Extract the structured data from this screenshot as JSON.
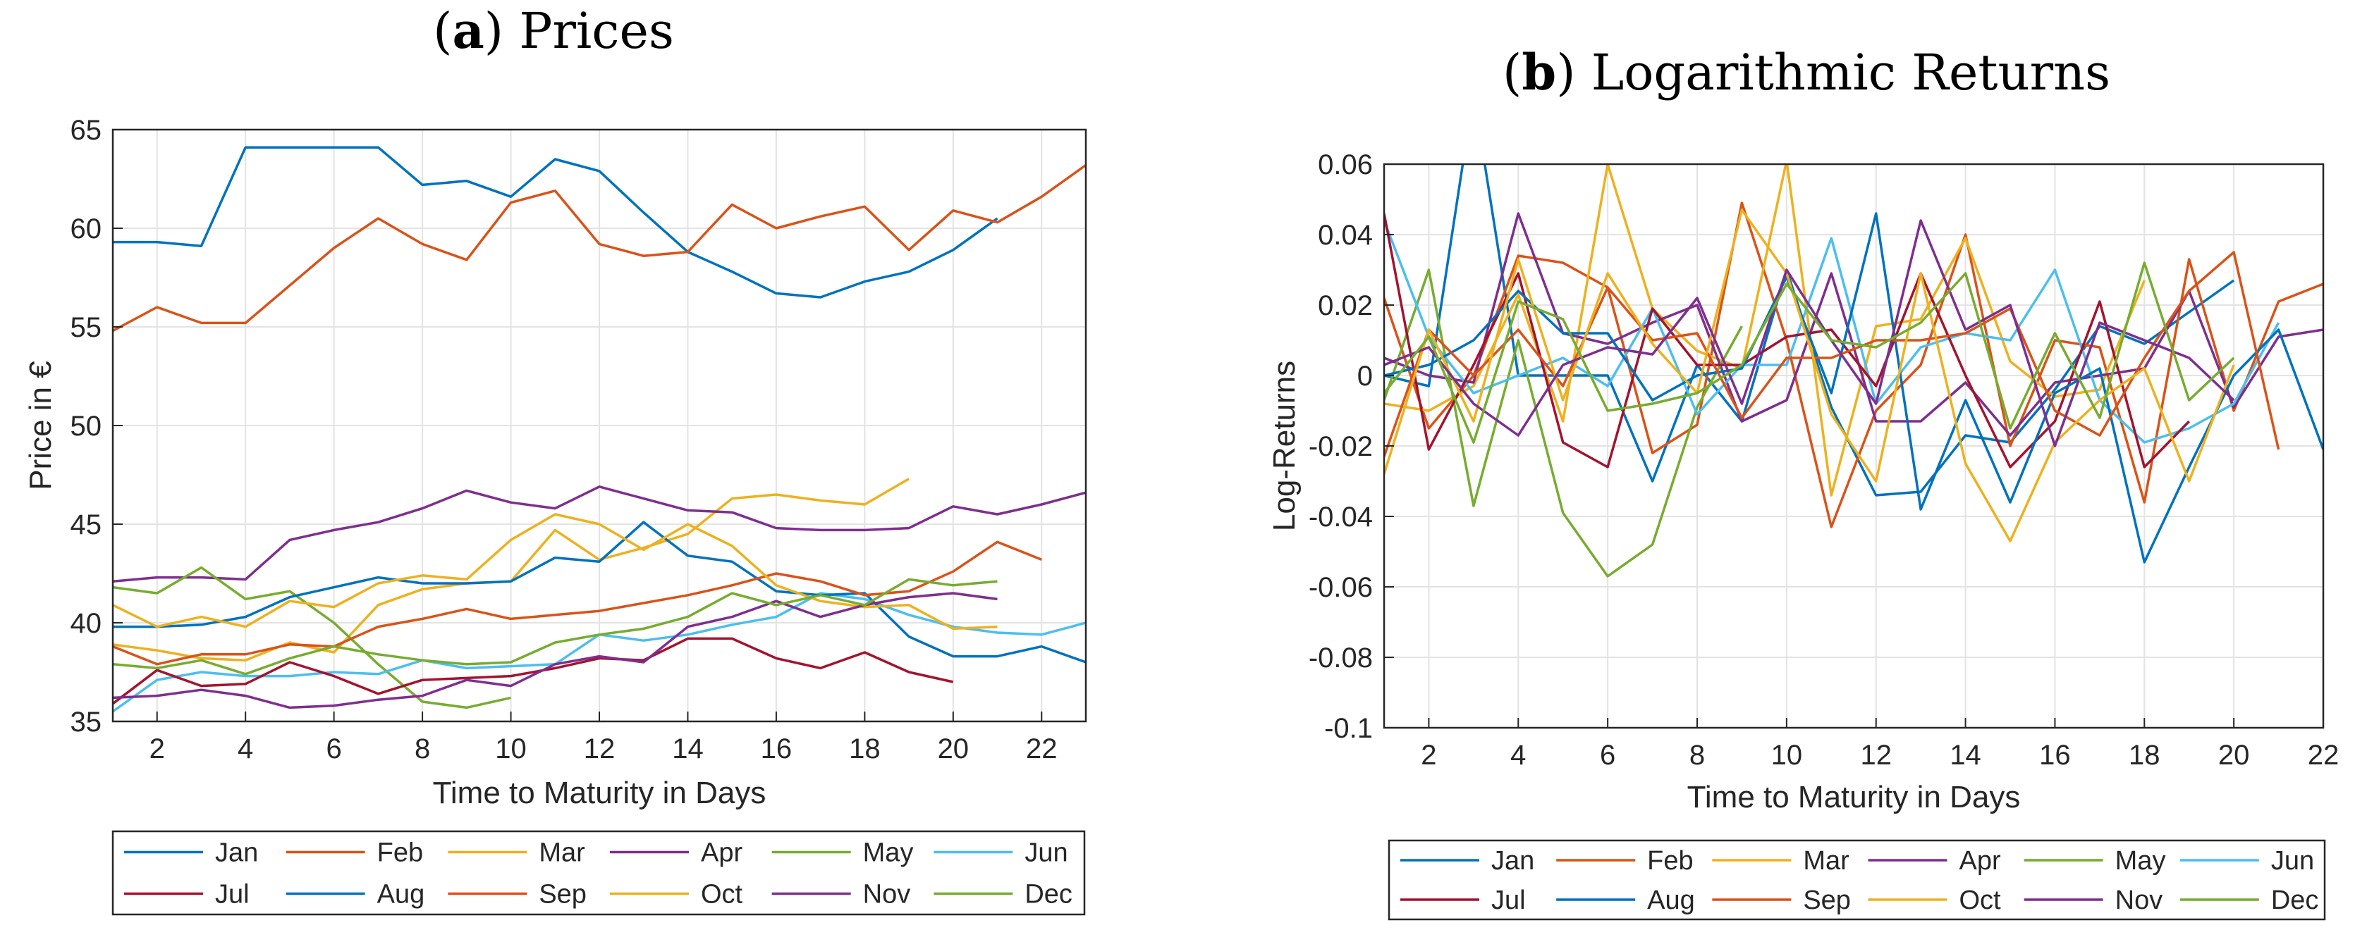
{
  "figure": {
    "legend_labels": [
      "Jan",
      "Feb",
      "Mar",
      "Apr",
      "May",
      "Jun",
      "Jul",
      "Aug",
      "Sep",
      "Oct",
      "Nov",
      "Dec"
    ],
    "series_colors": [
      "#0072BD",
      "#D95319",
      "#EDB120",
      "#7E2F8E",
      "#77AC30",
      "#4DBEEE",
      "#A2142F",
      "#0072BD",
      "#D95319",
      "#EDB120",
      "#7E2F8E",
      "#77AC30"
    ]
  },
  "chart_data": [
    {
      "type": "line",
      "panel_letter": "a",
      "title": "Prices",
      "xlabel": "Time to Maturity in Days",
      "ylabel": "Price in €",
      "xlim": [
        1,
        23
      ],
      "ylim": [
        35,
        65
      ],
      "xticks": [
        2,
        4,
        6,
        8,
        10,
        12,
        14,
        16,
        18,
        20,
        22
      ],
      "yticks": [
        35,
        40,
        45,
        50,
        55,
        60,
        65
      ],
      "ytick_labels": [
        "35",
        "40",
        "45",
        "50",
        "55",
        "60",
        "65"
      ],
      "grid": true,
      "legend_position": "bottom",
      "series": [
        {
          "name": "Jan",
          "x_start": 1,
          "values": [
            59.3,
            59.3,
            59.1,
            64.1,
            64.1,
            64.1,
            64.1,
            62.2,
            62.4,
            61.6,
            63.5,
            62.9,
            60.8,
            58.8,
            57.8,
            56.7,
            56.5,
            57.3,
            57.8,
            58.9,
            60.5
          ]
        },
        {
          "name": "Feb",
          "x_start": 1,
          "values": [
            54.8,
            56.0,
            55.2,
            55.2,
            57.1,
            59.0,
            60.5,
            59.2,
            58.4,
            61.3,
            61.9,
            59.2,
            58.6,
            58.8,
            61.2,
            60.0,
            60.6,
            61.1,
            58.9,
            60.9,
            60.3,
            61.6,
            63.2
          ]
        },
        {
          "name": "Mar",
          "x_start": 1,
          "values": [
            38.9,
            38.6,
            38.2,
            38.1,
            39.0,
            38.5,
            40.9,
            41.7,
            42.0,
            42.1,
            44.7,
            43.2,
            43.8,
            44.5,
            46.3,
            46.5,
            46.2,
            46.0,
            47.3
          ]
        },
        {
          "name": "Apr",
          "x_start": 1,
          "values": [
            42.1,
            42.3,
            42.3,
            42.2,
            44.2,
            44.7,
            45.1,
            45.8,
            46.7,
            46.1,
            45.8,
            46.9,
            46.3,
            45.7,
            45.6,
            44.8,
            44.7,
            44.7,
            44.8,
            45.9,
            45.5,
            46.0,
            46.6
          ]
        },
        {
          "name": "May",
          "x_start": 1,
          "values": [
            41.8,
            41.5,
            42.8,
            41.2,
            41.6,
            40.0,
            37.9,
            36.0,
            35.7,
            36.2
          ]
        },
        {
          "name": "Jun",
          "x_start": 1,
          "values": [
            35.5,
            37.1,
            37.5,
            37.3,
            37.3,
            37.5,
            37.4,
            38.1,
            37.7,
            37.8,
            37.9,
            39.4,
            39.1,
            39.4,
            39.9,
            40.3,
            41.5,
            41.2,
            40.4,
            39.8,
            39.5,
            39.4,
            40.0
          ]
        },
        {
          "name": "Jul",
          "x_start": 1,
          "values": [
            35.9,
            37.6,
            36.8,
            36.9,
            38.0,
            37.3,
            36.4,
            37.1,
            37.2,
            37.3,
            37.7,
            38.2,
            38.1,
            39.2,
            39.2,
            38.2,
            37.7,
            38.5,
            37.5,
            37.0
          ]
        },
        {
          "name": "Aug",
          "x_start": 1,
          "values": [
            39.8,
            39.8,
            39.9,
            40.3,
            41.3,
            41.8,
            42.3,
            42.0,
            42.0,
            42.1,
            43.3,
            43.1,
            45.1,
            43.4,
            43.1,
            41.6,
            41.4,
            41.5,
            39.3,
            38.3,
            38.3,
            38.8,
            38.0
          ]
        },
        {
          "name": "Sep",
          "x_start": 1,
          "values": [
            38.8,
            37.9,
            38.4,
            38.4,
            38.9,
            38.8,
            39.8,
            40.2,
            40.7,
            40.2,
            40.4,
            40.6,
            41.0,
            41.4,
            41.9,
            42.5,
            42.1,
            41.4,
            41.6,
            42.6,
            44.1,
            43.2
          ]
        },
        {
          "name": "Oct",
          "x_start": 1,
          "values": [
            40.9,
            39.8,
            40.3,
            39.8,
            41.1,
            40.8,
            42.0,
            42.4,
            42.2,
            44.2,
            45.5,
            45.0,
            43.7,
            45.0,
            43.9,
            41.9,
            41.1,
            40.8,
            40.9,
            39.7,
            39.8
          ]
        },
        {
          "name": "Nov",
          "x_start": 1,
          "values": [
            36.2,
            36.3,
            36.6,
            36.3,
            35.7,
            35.8,
            36.1,
            36.3,
            37.1,
            36.8,
            37.9,
            38.3,
            38.0,
            39.8,
            40.3,
            41.1,
            40.3,
            40.9,
            41.3,
            41.5,
            41.2
          ]
        },
        {
          "name": "Dec",
          "x_start": 1,
          "values": [
            37.9,
            37.7,
            38.1,
            37.4,
            38.2,
            38.8,
            38.4,
            38.1,
            37.9,
            38.0,
            39.0,
            39.4,
            39.7,
            40.3,
            41.5,
            40.9,
            41.4,
            40.9,
            42.2,
            41.9,
            42.1
          ]
        }
      ]
    },
    {
      "type": "line",
      "panel_letter": "b",
      "title": "Logarithmic Returns",
      "xlabel": "Time to Maturity in Days",
      "ylabel": "Log-Returns",
      "xlim": [
        1,
        22
      ],
      "ylim": [
        -0.1,
        0.06
      ],
      "xticks": [
        2,
        4,
        6,
        8,
        10,
        12,
        14,
        16,
        18,
        20,
        22
      ],
      "yticks": [
        -0.1,
        -0.08,
        -0.06,
        -0.04,
        -0.02,
        0,
        0.02,
        0.04,
        0.06
      ],
      "ytick_labels": [
        "-0.1",
        "-0.08",
        "-0.06",
        "-0.04",
        "-0.02",
        "0",
        "0.02",
        "0.04",
        "0.06"
      ],
      "grid": true,
      "legend_position": "bottom",
      "series": [
        {
          "name": "Jan",
          "x_start": 1,
          "values": [
            0.0,
            -0.003,
            0.08,
            0.0,
            0.0,
            0.0,
            -0.03,
            0.003,
            -0.013,
            0.03,
            -0.009,
            -0.034,
            -0.033,
            -0.017,
            -0.019,
            -0.004,
            0.014,
            0.009,
            0.018,
            0.027
          ]
        },
        {
          "name": "Feb",
          "x_start": 1,
          "values": [
            0.022,
            -0.015,
            0.0,
            0.034,
            0.032,
            0.025,
            -0.022,
            -0.014,
            0.049,
            0.01,
            -0.043,
            -0.01,
            0.003,
            0.04,
            -0.02,
            0.01,
            0.008,
            -0.036,
            0.033,
            -0.01,
            0.021,
            0.026
          ]
        },
        {
          "name": "Mar",
          "x_start": 1,
          "values": [
            -0.008,
            -0.01,
            -0.003,
            0.023,
            -0.013,
            0.06,
            0.019,
            0.007,
            0.002,
            0.061,
            -0.034,
            0.014,
            0.016,
            0.039,
            0.004,
            -0.006,
            -0.004,
            0.027
          ]
        },
        {
          "name": "Apr",
          "x_start": 1,
          "values": [
            0.005,
            0.0,
            -0.002,
            0.046,
            0.012,
            0.009,
            0.015,
            0.02,
            -0.013,
            -0.007,
            0.029,
            -0.013,
            -0.013,
            -0.002,
            -0.017,
            -0.002,
            0.0,
            0.002,
            0.024,
            -0.009,
            0.011,
            0.013
          ]
        },
        {
          "name": "May",
          "x_start": 1,
          "values": [
            -0.007,
            0.03,
            -0.037,
            0.01,
            -0.039,
            -0.057,
            -0.048,
            -0.009,
            0.014
          ]
        },
        {
          "name": "Jun",
          "x_start": 1,
          "values": [
            0.044,
            0.011,
            -0.005,
            0.0,
            0.005,
            -0.003,
            0.019,
            -0.011,
            0.003,
            0.003,
            0.039,
            -0.008,
            0.008,
            0.012,
            0.01,
            0.03,
            -0.007,
            -0.019,
            -0.015,
            -0.008,
            0.015
          ]
        },
        {
          "name": "Jul",
          "x_start": 1,
          "values": [
            0.046,
            -0.021,
            0.003,
            0.029,
            -0.019,
            -0.026,
            0.019,
            0.003,
            0.003,
            0.011,
            0.013,
            -0.003,
            0.029,
            0.0,
            -0.026,
            -0.013,
            0.021,
            -0.026,
            -0.013
          ]
        },
        {
          "name": "Aug",
          "x_start": 1,
          "values": [
            0.0,
            0.003,
            0.01,
            0.024,
            0.012,
            0.012,
            -0.007,
            0.0,
            0.002,
            0.028,
            -0.005,
            0.046,
            -0.038,
            -0.007,
            -0.036,
            -0.005,
            0.002,
            -0.053,
            -0.026,
            0.0,
            0.013,
            -0.021
          ]
        },
        {
          "name": "Sep",
          "x_start": 1,
          "values": [
            -0.023,
            0.013,
            0.0,
            0.013,
            -0.003,
            0.025,
            0.01,
            0.012,
            -0.012,
            0.005,
            0.005,
            0.01,
            0.01,
            0.012,
            0.019,
            -0.01,
            -0.017,
            0.005,
            0.024,
            0.035,
            -0.021
          ]
        },
        {
          "name": "Oct",
          "x_start": 1,
          "values": [
            -0.028,
            0.013,
            -0.013,
            0.033,
            -0.007,
            0.029,
            0.009,
            -0.005,
            0.047,
            0.029,
            -0.011,
            -0.03,
            0.029,
            -0.025,
            -0.047,
            -0.019,
            -0.007,
            0.002,
            -0.03,
            0.003
          ]
        },
        {
          "name": "Nov",
          "x_start": 1,
          "values": [
            0.003,
            0.008,
            -0.008,
            -0.017,
            0.003,
            0.008,
            0.006,
            0.022,
            -0.008,
            0.03,
            0.01,
            -0.008,
            0.044,
            0.013,
            0.02,
            -0.02,
            0.015,
            0.01,
            0.005,
            -0.007
          ]
        },
        {
          "name": "Dec",
          "x_start": 1,
          "values": [
            -0.005,
            0.011,
            -0.019,
            0.021,
            0.016,
            -0.01,
            -0.008,
            -0.005,
            0.003,
            0.026,
            0.01,
            0.008,
            0.015,
            0.029,
            -0.015,
            0.012,
            -0.012,
            0.032,
            -0.007,
            0.005
          ]
        }
      ]
    }
  ]
}
